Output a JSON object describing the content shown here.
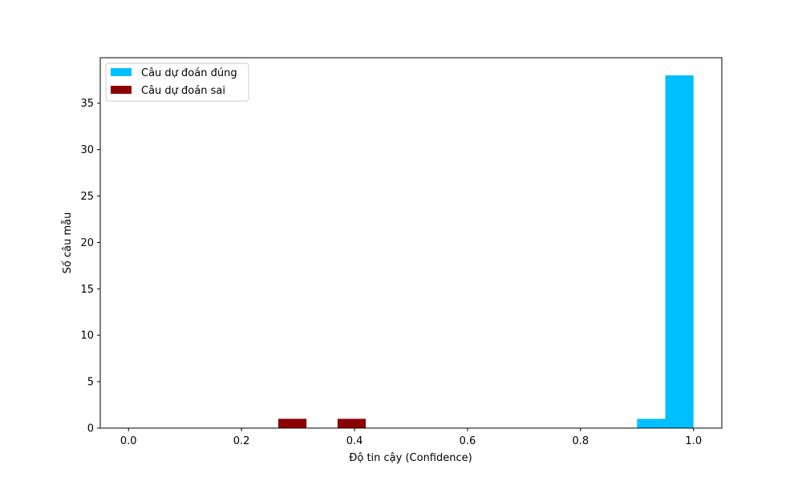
{
  "chart_data": {
    "type": "bar",
    "title": "",
    "xlabel": "Độ tin cậy (Confidence)",
    "ylabel": "Số câu mẫu",
    "xlim": [
      -0.05,
      1.05
    ],
    "ylim": [
      0,
      39.9
    ],
    "xticks": [
      0.0,
      0.2,
      0.4,
      0.6,
      0.8,
      1.0
    ],
    "xtick_labels": [
      "0.0",
      "0.2",
      "0.4",
      "0.6",
      "0.8",
      "1.0"
    ],
    "yticks": [
      0,
      5,
      10,
      15,
      20,
      25,
      30,
      35
    ],
    "ytick_labels": [
      "0",
      "5",
      "10",
      "15",
      "20",
      "25",
      "30",
      "35"
    ],
    "grid": false,
    "legend_position": "top-left",
    "bin_width": 0.05,
    "series": [
      {
        "name": "Câu dự đoán đúng",
        "color": "#00BFFF",
        "bins": [
          [
            0.9,
            0.95
          ],
          [
            0.95,
            1.0
          ]
        ],
        "values": [
          1,
          38
        ]
      },
      {
        "name": "Câu dự đoán sai",
        "color": "#8B0000",
        "bins": [
          [
            0.265,
            0.315
          ],
          [
            0.37,
            0.42
          ]
        ],
        "values": [
          1,
          1
        ]
      }
    ]
  }
}
